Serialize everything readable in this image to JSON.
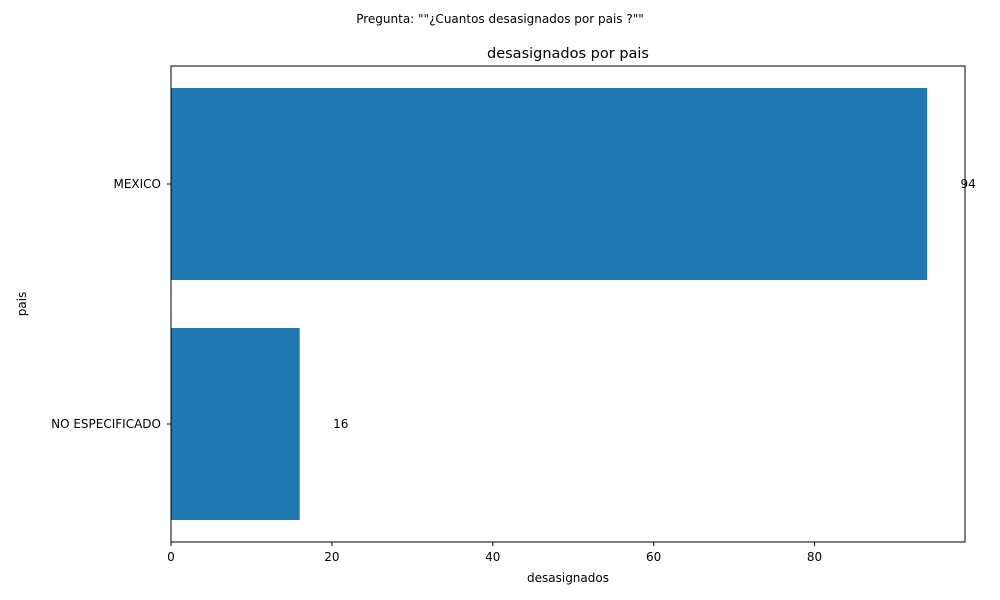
{
  "figure": {
    "suptitle": "Pregunta: \"\"¿Cuantos desasignados  por pais ?\"\""
  },
  "chart_data": {
    "type": "bar",
    "orientation": "horizontal",
    "title": "desasignados por pais",
    "xlabel": "desasignados",
    "ylabel": "pais",
    "categories": [
      "MEXICO",
      "NO ESPECIFICADO"
    ],
    "values": [
      94,
      16
    ],
    "data_labels": [
      "94",
      "16"
    ],
    "xlim": [
      0,
      98.7
    ],
    "x_ticks": [
      0,
      20,
      40,
      60,
      80
    ],
    "x_tick_labels": [
      "0",
      "20",
      "40",
      "60",
      "80"
    ],
    "bar_color": "#1f77b4",
    "grid": false
  }
}
